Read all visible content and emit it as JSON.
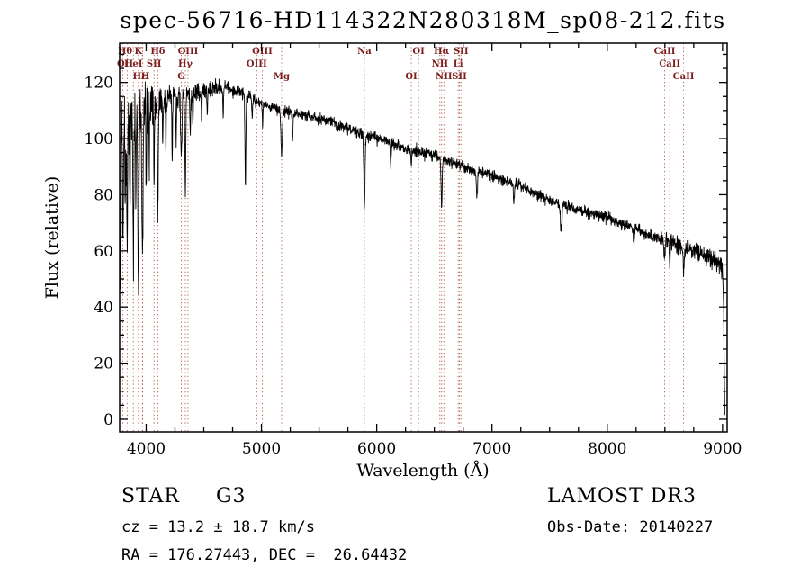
{
  "title": "spec-56716-HD114322N280318M_sp08-212.fits",
  "footer": {
    "class_line": "STAR     G3",
    "survey_line": "LAMOST DR3",
    "cz_line": "cz = 13.2 ± 18.7 km/s",
    "obsdate_line": "Obs-Date: 20140227",
    "radec_line": "RA = 176.27443, DEC =  26.64432"
  },
  "chart_data": {
    "type": "line",
    "title": "spec-56716-HD114322N280318M_sp08-212.fits",
    "xlabel": "Wavelength (Å)",
    "ylabel": "Flux (relative)",
    "xlim": [
      3770,
      9040
    ],
    "ylim": [
      -4.5,
      134
    ],
    "xticks": [
      4000,
      5000,
      6000,
      7000,
      8000,
      9000
    ],
    "yticks": [
      0,
      20,
      40,
      60,
      80,
      100,
      120
    ],
    "x_minor_step": 250,
    "y_minor_step": 5,
    "grid": false,
    "legend": "none",
    "trace_color": "#000000",
    "marker_line_color": "#b05545",
    "marker_label_color": "#7d1d1d",
    "spectral_lines_wl": [
      3727,
      3798,
      3835,
      3889,
      3933,
      3968,
      3970,
      4068,
      4101,
      4305,
      4340,
      4363,
      4959,
      5007,
      5175,
      5893,
      6300,
      6363,
      6548,
      6563,
      6583,
      6707,
      6717,
      6731,
      8498,
      8542,
      8662
    ],
    "spectral_line_labels": [
      {
        "text": "Hθ",
        "wl": 3798,
        "row": 1
      },
      {
        "text": "K",
        "wl": 3933,
        "row": 1
      },
      {
        "text": "Hδ",
        "wl": 4101,
        "row": 1
      },
      {
        "text": "OIII",
        "wl": 4363,
        "row": 1
      },
      {
        "text": "OIII",
        "wl": 5007,
        "row": 1
      },
      {
        "text": "Na",
        "wl": 5893,
        "row": 1
      },
      {
        "text": "OI",
        "wl": 6363,
        "row": 1
      },
      {
        "text": "Hα",
        "wl": 6563,
        "row": 1
      },
      {
        "text": "SII",
        "wl": 6731,
        "row": 1
      },
      {
        "text": "CaII",
        "wl": 8498,
        "row": 1
      },
      {
        "text": "OII",
        "wl": 3740,
        "row": 2
      },
      {
        "text": "HeI",
        "wl": 3889,
        "row": 2
      },
      {
        "text": "SII",
        "wl": 4068,
        "row": 2
      },
      {
        "text": "Hγ",
        "wl": 4340,
        "row": 2
      },
      {
        "text": "OIII",
        "wl": 4959,
        "row": 2
      },
      {
        "text": "NII",
        "wl": 6548,
        "row": 2
      },
      {
        "text": "Li",
        "wl": 6707,
        "row": 2
      },
      {
        "text": "CaII",
        "wl": 8542,
        "row": 2
      },
      {
        "text": "Hε",
        "wl": 3945,
        "row": 3
      },
      {
        "text": "H",
        "wl": 3992,
        "row": 3
      },
      {
        "text": "G",
        "wl": 4305,
        "row": 3
      },
      {
        "text": "Mg",
        "wl": 5175,
        "row": 3
      },
      {
        "text": "OI",
        "wl": 6300,
        "row": 3
      },
      {
        "text": "NII",
        "wl": 6583,
        "row": 3
      },
      {
        "text": "SII",
        "wl": 6717,
        "row": 3
      },
      {
        "text": "CaII",
        "wl": 8662,
        "row": 3
      }
    ],
    "spectrum": {
      "start": 3772,
      "end": 9020,
      "continuum": [
        [
          3770,
          103
        ],
        [
          3800,
          106
        ],
        [
          3850,
          108
        ],
        [
          3900,
          110
        ],
        [
          3950,
          111
        ],
        [
          4000,
          112
        ],
        [
          4100,
          113
        ],
        [
          4200,
          115
        ],
        [
          4300,
          115
        ],
        [
          4400,
          116
        ],
        [
          4500,
          117
        ],
        [
          4600,
          118
        ],
        [
          4700,
          118
        ],
        [
          4800,
          117
        ],
        [
          4900,
          115
        ],
        [
          5000,
          112
        ],
        [
          5100,
          111
        ],
        [
          5200,
          110
        ],
        [
          5300,
          109
        ],
        [
          5400,
          108
        ],
        [
          5500,
          107
        ],
        [
          5600,
          106
        ],
        [
          5700,
          104
        ],
        [
          5800,
          103
        ],
        [
          5900,
          101
        ],
        [
          6000,
          100
        ],
        [
          6100,
          99
        ],
        [
          6200,
          97
        ],
        [
          6300,
          96
        ],
        [
          6400,
          95
        ],
        [
          6500,
          94
        ],
        [
          6600,
          92
        ],
        [
          6700,
          91
        ],
        [
          6800,
          89
        ],
        [
          6900,
          88
        ],
        [
          7000,
          87
        ],
        [
          7100,
          85
        ],
        [
          7200,
          84
        ],
        [
          7300,
          82
        ],
        [
          7400,
          80
        ],
        [
          7500,
          78
        ],
        [
          7600,
          77
        ],
        [
          7700,
          75
        ],
        [
          7800,
          74
        ],
        [
          7900,
          73
        ],
        [
          8000,
          72
        ],
        [
          8100,
          70
        ],
        [
          8200,
          69
        ],
        [
          8300,
          67
        ],
        [
          8400,
          65
        ],
        [
          8500,
          64
        ],
        [
          8600,
          62
        ],
        [
          8700,
          61
        ],
        [
          8800,
          60
        ],
        [
          8900,
          57
        ],
        [
          8950,
          56
        ],
        [
          9000,
          53
        ],
        [
          9008,
          45
        ],
        [
          9014,
          22
        ],
        [
          9020,
          5
        ]
      ],
      "absorption": [
        [
          3775,
          55,
          3
        ],
        [
          3798,
          45,
          4
        ],
        [
          3820,
          30,
          3
        ],
        [
          3835,
          48,
          3
        ],
        [
          3860,
          35,
          3
        ],
        [
          3889,
          50,
          4
        ],
        [
          3910,
          30,
          3
        ],
        [
          3933,
          62,
          5
        ],
        [
          3968,
          52,
          5
        ],
        [
          4000,
          25,
          3
        ],
        [
          4026,
          20,
          3
        ],
        [
          4068,
          25,
          3
        ],
        [
          4101,
          40,
          4
        ],
        [
          4144,
          15,
          3
        ],
        [
          4172,
          18,
          3
        ],
        [
          4226,
          22,
          3
        ],
        [
          4260,
          14,
          3
        ],
        [
          4305,
          20,
          6
        ],
        [
          4340,
          34,
          4
        ],
        [
          4383,
          16,
          3
        ],
        [
          4405,
          12,
          3
        ],
        [
          4481,
          10,
          3
        ],
        [
          4530,
          10,
          3
        ],
        [
          4668,
          10,
          3
        ],
        [
          4861,
          32,
          4
        ],
        [
          4920,
          8,
          3
        ],
        [
          5010,
          8,
          3
        ],
        [
          5175,
          16,
          6
        ],
        [
          5270,
          10,
          4
        ],
        [
          5893,
          26,
          5
        ],
        [
          6122,
          8,
          4
        ],
        [
          6300,
          6,
          3
        ],
        [
          6563,
          18,
          4
        ],
        [
          6870,
          9,
          5
        ],
        [
          7190,
          6,
          5
        ],
        [
          7600,
          10,
          7
        ],
        [
          8230,
          6,
          5
        ],
        [
          8498,
          8,
          4
        ],
        [
          8542,
          10,
          4
        ],
        [
          8662,
          9,
          4
        ]
      ],
      "noise": {
        "seed": 20140227,
        "base": 2.1,
        "blue_extra": 15,
        "blue_scale": 280,
        "red_rise": 2.0,
        "step": 2
      }
    }
  }
}
